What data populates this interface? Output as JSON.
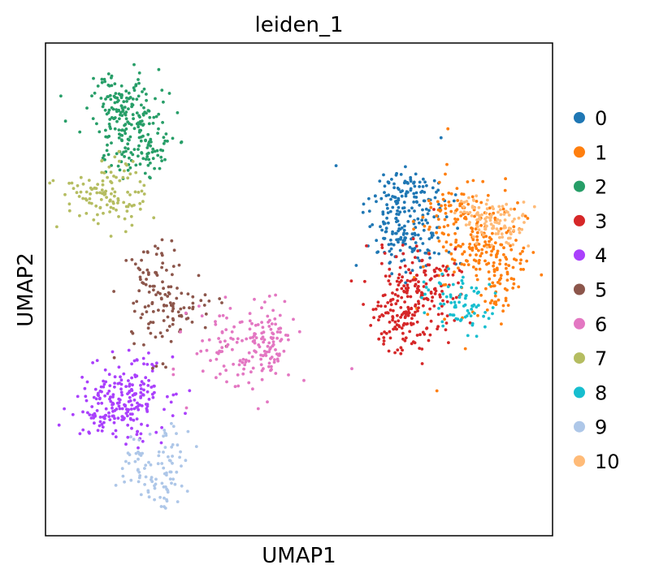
{
  "chart_data": {
    "type": "scatter",
    "title": "leiden_1",
    "xlabel": "UMAP1",
    "ylabel": "UMAP2",
    "xlim": [
      0,
      100
    ],
    "ylim": [
      0,
      100
    ],
    "ticks": "none",
    "grid": false,
    "legend_position": "right-outside",
    "clusters": [
      {
        "name": "0",
        "color": "#1f77b4",
        "centroids": [
          [
            71,
            65
          ],
          [
            72,
            70
          ],
          [
            69,
            59
          ],
          [
            74,
            60
          ]
        ],
        "spread": [
          [
            4.2,
            4.8
          ],
          [
            3.2,
            2.5
          ],
          [
            2.4,
            2.5
          ],
          [
            2.5,
            2.5
          ]
        ],
        "counts": [
          130,
          45,
          35,
          30
        ]
      },
      {
        "name": "1",
        "color": "#ff7f0e",
        "centroids": [
          [
            84,
            60
          ],
          [
            90,
            52
          ],
          [
            80,
            66
          ],
          [
            88,
            58
          ]
        ],
        "spread": [
          [
            5.5,
            6.5
          ],
          [
            3.0,
            4.0
          ],
          [
            2.5,
            2.5
          ],
          [
            3.5,
            4.0
          ]
        ],
        "counts": [
          140,
          55,
          35,
          50
        ]
      },
      {
        "name": "2",
        "color": "#279e68",
        "centroids": [
          [
            17,
            84
          ],
          [
            14,
            88
          ],
          [
            20,
            78
          ]
        ],
        "spread": [
          [
            4.0,
            5.0
          ],
          [
            2.2,
            3.0
          ],
          [
            3.0,
            3.0
          ]
        ],
        "counts": [
          150,
          55,
          50
        ]
      },
      {
        "name": "3",
        "color": "#d62728",
        "centroids": [
          [
            72,
            48
          ],
          [
            70,
            43
          ],
          [
            74,
            52
          ]
        ],
        "spread": [
          [
            4.5,
            5.0
          ],
          [
            2.5,
            3.0
          ],
          [
            3.5,
            2.5
          ]
        ],
        "counts": [
          160,
          50,
          40
        ]
      },
      {
        "name": "4",
        "color": "#aa40fc",
        "centroids": [
          [
            15,
            27
          ],
          [
            18,
            30
          ],
          [
            11,
            25
          ]
        ],
        "spread": [
          [
            4.5,
            4.0
          ],
          [
            3.0,
            3.0
          ],
          [
            2.0,
            2.5
          ]
        ],
        "counts": [
          140,
          50,
          35
        ]
      },
      {
        "name": "5",
        "color": "#8c564b",
        "centroids": [
          [
            22,
            46
          ],
          [
            21,
            53
          ],
          [
            28,
            46
          ]
        ],
        "spread": [
          [
            3.5,
            5.0
          ],
          [
            2.5,
            3.5
          ],
          [
            3.0,
            2.5
          ]
        ],
        "counts": [
          70,
          35,
          30
        ]
      },
      {
        "name": "6",
        "color": "#e377c2",
        "centroids": [
          [
            39,
            38
          ],
          [
            43,
            37
          ],
          [
            45,
            42
          ]
        ],
        "spread": [
          [
            5.0,
            4.5
          ],
          [
            2.5,
            4.0
          ],
          [
            2.0,
            2.5
          ]
        ],
        "counts": [
          110,
          40,
          30
        ]
      },
      {
        "name": "7",
        "color": "#b5bd61",
        "centroids": [
          [
            11,
            68
          ],
          [
            13,
            72
          ]
        ],
        "spread": [
          [
            4.5,
            3.0
          ],
          [
            2.5,
            3.0
          ]
        ],
        "counts": [
          80,
          35
        ]
      },
      {
        "name": "8",
        "color": "#17becf",
        "centroids": [
          [
            81,
            48
          ],
          [
            84,
            45
          ]
        ],
        "spread": [
          [
            3.0,
            2.5
          ],
          [
            2.0,
            2.0
          ]
        ],
        "counts": [
          45,
          30
        ]
      },
      {
        "name": "9",
        "color": "#aec7e8",
        "centroids": [
          [
            20,
            14
          ],
          [
            24,
            10
          ],
          [
            25,
            17
          ]
        ],
        "spread": [
          [
            3.5,
            3.5
          ],
          [
            2.0,
            2.5
          ],
          [
            2.0,
            3.0
          ]
        ],
        "counts": [
          55,
          20,
          25
        ]
      },
      {
        "name": "10",
        "color": "#ffbb78",
        "centroids": [
          [
            89,
            64
          ],
          [
            85,
            66
          ],
          [
            91,
            62
          ]
        ],
        "spread": [
          [
            3.0,
            2.0
          ],
          [
            2.5,
            1.5
          ],
          [
            2.0,
            2.0
          ]
        ],
        "counts": [
          55,
          30,
          25
        ]
      }
    ]
  }
}
